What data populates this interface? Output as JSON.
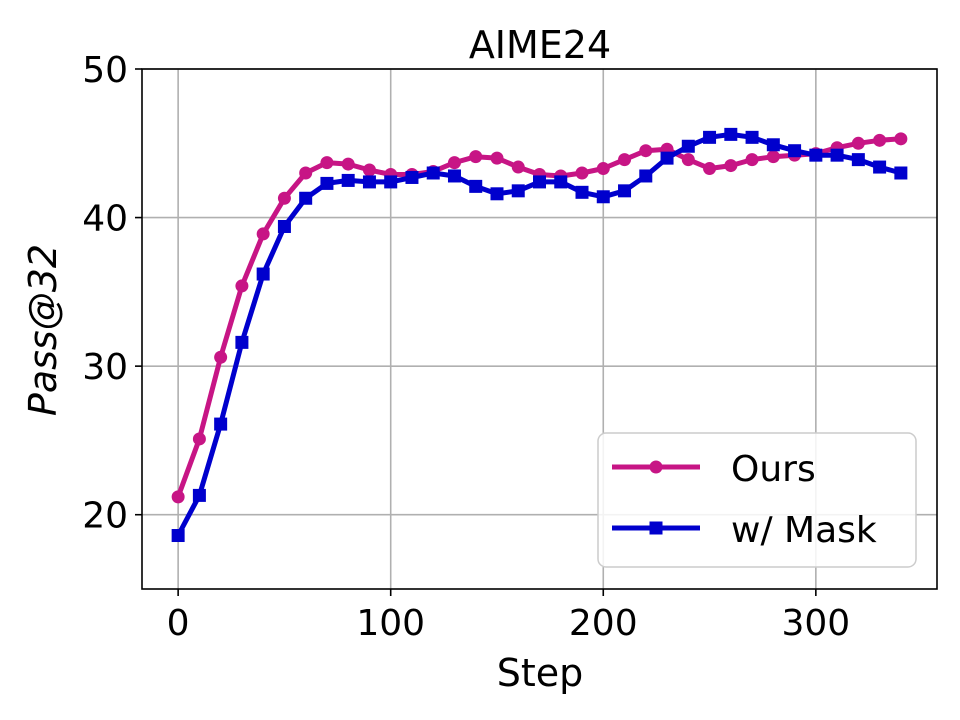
{
  "chart_data": {
    "type": "line",
    "title": "AIME24",
    "xlabel": "Step",
    "ylabel": "Pass@32",
    "xlim": [
      -17,
      357
    ],
    "ylim": [
      15,
      50
    ],
    "xticks": [
      0,
      100,
      200,
      300
    ],
    "yticks": [
      20,
      30,
      40,
      50
    ],
    "grid": true,
    "legend_position": "lower right",
    "x": [
      0,
      10,
      20,
      30,
      40,
      50,
      60,
      70,
      80,
      90,
      100,
      110,
      120,
      130,
      140,
      150,
      160,
      170,
      180,
      190,
      200,
      210,
      220,
      230,
      240,
      250,
      260,
      270,
      280,
      290,
      300,
      310,
      320,
      330,
      340
    ],
    "series": [
      {
        "name": "Ours",
        "color": "#C71585",
        "marker": "circle",
        "values": [
          21.2,
          25.1,
          30.6,
          35.4,
          38.9,
          41.3,
          43.0,
          43.7,
          43.6,
          43.2,
          42.9,
          42.9,
          43.1,
          43.7,
          44.1,
          44.0,
          43.4,
          42.9,
          42.8,
          43.0,
          43.3,
          43.9,
          44.5,
          44.6,
          43.9,
          43.3,
          43.5,
          43.9,
          44.1,
          44.2,
          44.3,
          44.7,
          45.0,
          45.2,
          45.3
        ]
      },
      {
        "name": "w/ Mask",
        "color": "#0000CD",
        "marker": "square",
        "values": [
          18.6,
          21.3,
          26.1,
          31.6,
          36.2,
          39.4,
          41.3,
          42.3,
          42.5,
          42.4,
          42.4,
          42.7,
          43.0,
          42.8,
          42.1,
          41.6,
          41.8,
          42.4,
          42.4,
          41.7,
          41.4,
          41.8,
          42.8,
          44.0,
          44.8,
          45.4,
          45.6,
          45.4,
          44.9,
          44.5,
          44.2,
          44.2,
          43.9,
          43.4,
          43.0
        ]
      }
    ]
  }
}
